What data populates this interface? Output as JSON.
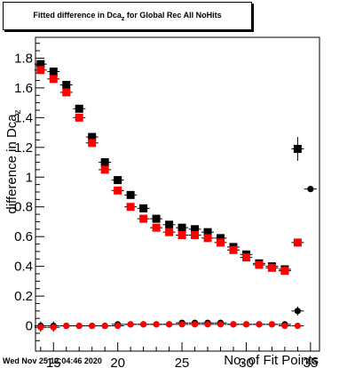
{
  "header": {
    "title": "Fitted difference in Dca_z for Global Rec All NoHits"
  },
  "footer": {
    "date": "Wed Nov 25 12:04:46 2020"
  },
  "chart_data": {
    "type": "scatter",
    "title": "Fitted difference in Dca_z for Global Rec All NoHits",
    "xlabel": "No. of Fit Points",
    "ylabel": "difference in Dca_z",
    "xlim": [
      13.6,
      35.7
    ],
    "ylim": [
      -0.17,
      1.94
    ],
    "x_ticks": [
      15,
      20,
      25,
      30,
      35
    ],
    "y_ticks": [
      0,
      0.2,
      0.4,
      0.6,
      0.8,
      1,
      1.2,
      1.4,
      1.6,
      1.8
    ],
    "y_tick_labels": [
      "0",
      "0.2",
      "0.4",
      "0.6",
      "0.8",
      "1",
      "1.2",
      "1.4",
      "1.6",
      "1.8"
    ],
    "series": [
      {
        "color": "#000000",
        "marker": "square",
        "x": [
          14,
          15,
          16,
          17,
          18,
          19,
          20,
          21,
          22,
          23,
          24,
          25,
          26,
          27,
          28,
          29,
          30,
          31,
          32,
          33,
          34
        ],
        "y": [
          1.76,
          1.71,
          1.62,
          1.46,
          1.27,
          1.1,
          0.98,
          0.88,
          0.79,
          0.72,
          0.68,
          0.66,
          0.65,
          0.63,
          0.59,
          0.53,
          0.48,
          0.42,
          0.4,
          0.38,
          1.19
        ],
        "err": [
          0.02,
          0.02,
          0.02,
          0.02,
          0.02,
          0.02,
          0.02,
          0.02,
          0.02,
          0.02,
          0.02,
          0.02,
          0.02,
          0.02,
          0.02,
          0.02,
          0.02,
          0.02,
          0.02,
          0.02,
          0.08
        ]
      },
      {
        "color": "#ff0000",
        "marker": "square",
        "x": [
          14,
          15,
          16,
          17,
          18,
          19,
          20,
          21,
          22,
          23,
          24,
          25,
          26,
          27,
          28,
          29,
          30,
          31,
          32,
          33,
          34
        ],
        "y": [
          1.72,
          1.66,
          1.57,
          1.4,
          1.23,
          1.05,
          0.91,
          0.8,
          0.72,
          0.66,
          0.63,
          0.61,
          0.61,
          0.59,
          0.56,
          0.51,
          0.46,
          0.41,
          0.39,
          0.37,
          0.56
        ],
        "err": [
          0.02,
          0.02,
          0.02,
          0.02,
          0.02,
          0.02,
          0.02,
          0.02,
          0.02,
          0.02,
          0.02,
          0.02,
          0.02,
          0.02,
          0.02,
          0.02,
          0.02,
          0.02,
          0.02,
          0.02,
          0.02
        ]
      },
      {
        "color": "#000000",
        "marker": "circle",
        "x": [
          14,
          15,
          16,
          17,
          18,
          19,
          20,
          21,
          22,
          23,
          24,
          25,
          26,
          27,
          28,
          29,
          30,
          31,
          32,
          33,
          34,
          35
        ],
        "y": [
          0.0,
          0.0,
          0.0,
          0.0,
          0.0,
          0.0,
          0.01,
          0.01,
          0.01,
          0.01,
          0.01,
          0.02,
          0.02,
          0.02,
          0.02,
          0.01,
          0.01,
          0.01,
          0.01,
          0.01,
          0.1,
          0.92
        ],
        "err": [
          0.03,
          0.03,
          0.02,
          0.02,
          0.02,
          0.02,
          0.02,
          0.02,
          0.02,
          0.02,
          0.02,
          0.02,
          0.02,
          0.02,
          0.02,
          0.02,
          0.02,
          0.02,
          0.02,
          0.02,
          0.03,
          0.02
        ]
      },
      {
        "color": "#ff0000",
        "marker": "circle",
        "x": [
          14,
          15,
          16,
          17,
          18,
          19,
          20,
          21,
          22,
          23,
          24,
          25,
          26,
          27,
          28,
          29,
          30,
          31,
          32,
          33,
          34
        ],
        "y": [
          -0.01,
          -0.01,
          0.0,
          0.0,
          0.0,
          0.0,
          0.0,
          0.01,
          0.01,
          0.01,
          0.01,
          0.01,
          0.01,
          0.01,
          0.01,
          0.01,
          0.01,
          0.01,
          0.01,
          0.0,
          0.0
        ],
        "err": [
          0.03,
          0.03,
          0.02,
          0.02,
          0.02,
          0.02,
          0.02,
          0.02,
          0.02,
          0.02,
          0.02,
          0.02,
          0.02,
          0.02,
          0.02,
          0.02,
          0.02,
          0.02,
          0.02,
          0.02,
          0.02
        ]
      }
    ]
  }
}
